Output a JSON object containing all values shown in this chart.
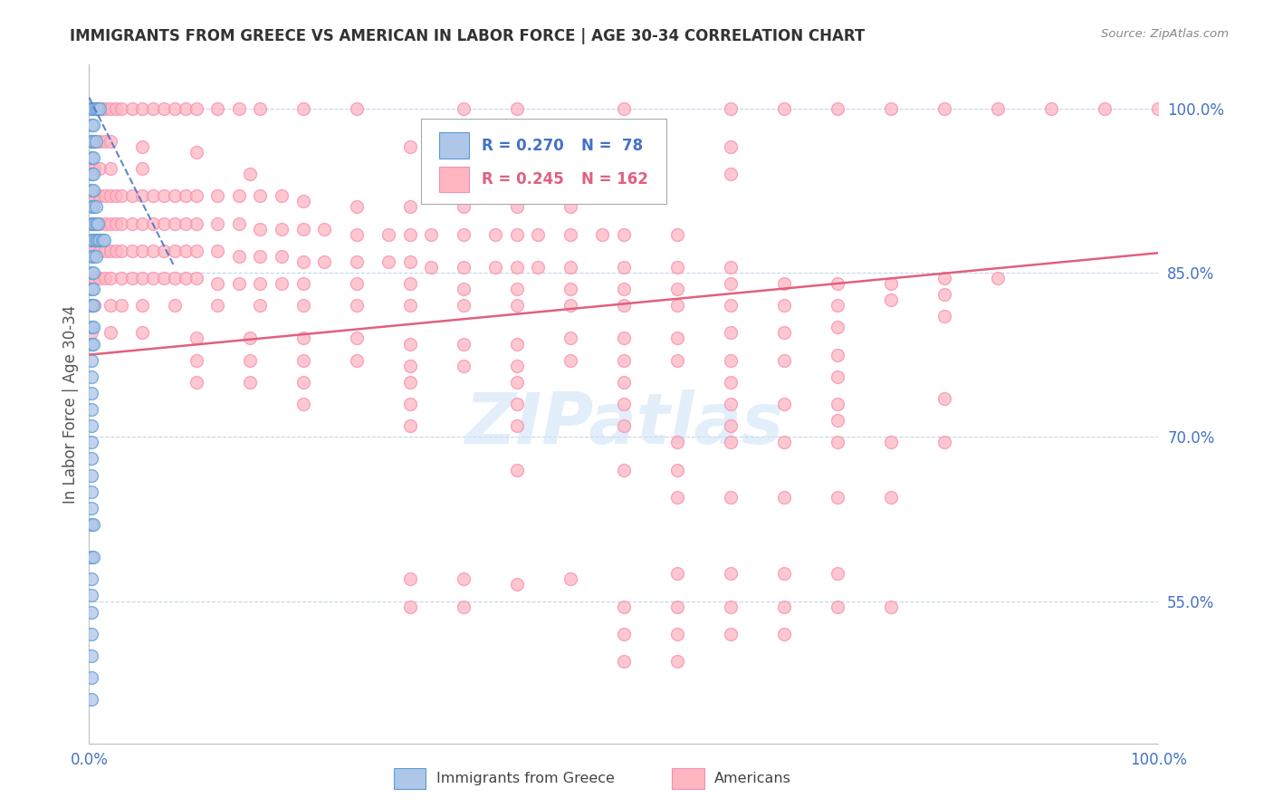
{
  "title": "IMMIGRANTS FROM GREECE VS AMERICAN IN LABOR FORCE | AGE 30-34 CORRELATION CHART",
  "source": "Source: ZipAtlas.com",
  "ylabel": "In Labor Force | Age 30-34",
  "xlim": [
    0.0,
    1.0
  ],
  "ylim": [
    0.42,
    1.04
  ],
  "yticks": [
    0.55,
    0.7,
    0.85,
    1.0
  ],
  "ytick_labels": [
    "55.0%",
    "70.0%",
    "85.0%",
    "100.0%"
  ],
  "xtick_labels": [
    "0.0%",
    "100.0%"
  ],
  "blue_R": 0.27,
  "blue_N": 78,
  "pink_R": 0.245,
  "pink_N": 162,
  "legend_label_blue": "Immigrants from Greece",
  "legend_label_pink": "Americans",
  "axis_color": "#4472C4",
  "watermark": "ZIPatlas",
  "blue_scatter": [
    [
      0.002,
      1.0
    ],
    [
      0.004,
      1.0
    ],
    [
      0.006,
      1.0
    ],
    [
      0.008,
      1.0
    ],
    [
      0.01,
      1.0
    ],
    [
      0.002,
      0.985
    ],
    [
      0.004,
      0.985
    ],
    [
      0.002,
      0.97
    ],
    [
      0.004,
      0.97
    ],
    [
      0.006,
      0.97
    ],
    [
      0.002,
      0.955
    ],
    [
      0.004,
      0.955
    ],
    [
      0.002,
      0.94
    ],
    [
      0.004,
      0.94
    ],
    [
      0.002,
      0.925
    ],
    [
      0.004,
      0.925
    ],
    [
      0.002,
      0.91
    ],
    [
      0.004,
      0.91
    ],
    [
      0.006,
      0.91
    ],
    [
      0.002,
      0.895
    ],
    [
      0.004,
      0.895
    ],
    [
      0.006,
      0.895
    ],
    [
      0.008,
      0.895
    ],
    [
      0.002,
      0.88
    ],
    [
      0.004,
      0.88
    ],
    [
      0.006,
      0.88
    ],
    [
      0.008,
      0.88
    ],
    [
      0.01,
      0.88
    ],
    [
      0.012,
      0.88
    ],
    [
      0.014,
      0.88
    ],
    [
      0.002,
      0.865
    ],
    [
      0.004,
      0.865
    ],
    [
      0.006,
      0.865
    ],
    [
      0.002,
      0.85
    ],
    [
      0.004,
      0.85
    ],
    [
      0.002,
      0.835
    ],
    [
      0.004,
      0.835
    ],
    [
      0.002,
      0.82
    ],
    [
      0.004,
      0.82
    ],
    [
      0.002,
      0.8
    ],
    [
      0.004,
      0.8
    ],
    [
      0.002,
      0.785
    ],
    [
      0.004,
      0.785
    ],
    [
      0.002,
      0.77
    ],
    [
      0.002,
      0.755
    ],
    [
      0.002,
      0.74
    ],
    [
      0.002,
      0.725
    ],
    [
      0.002,
      0.71
    ],
    [
      0.002,
      0.695
    ],
    [
      0.002,
      0.68
    ],
    [
      0.002,
      0.665
    ],
    [
      0.002,
      0.65
    ],
    [
      0.002,
      0.635
    ],
    [
      0.002,
      0.62
    ],
    [
      0.004,
      0.62
    ],
    [
      0.002,
      0.59
    ],
    [
      0.004,
      0.59
    ],
    [
      0.002,
      0.57
    ],
    [
      0.002,
      0.555
    ],
    [
      0.002,
      0.54
    ],
    [
      0.002,
      0.52
    ],
    [
      0.002,
      0.5
    ],
    [
      0.002,
      0.48
    ],
    [
      0.002,
      0.46
    ]
  ],
  "pink_scatter": [
    [
      0.002,
      1.0
    ],
    [
      0.005,
      1.0
    ],
    [
      0.008,
      1.0
    ],
    [
      0.012,
      1.0
    ],
    [
      0.015,
      1.0
    ],
    [
      0.02,
      1.0
    ],
    [
      0.025,
      1.0
    ],
    [
      0.03,
      1.0
    ],
    [
      0.04,
      1.0
    ],
    [
      0.05,
      1.0
    ],
    [
      0.06,
      1.0
    ],
    [
      0.07,
      1.0
    ],
    [
      0.08,
      1.0
    ],
    [
      0.09,
      1.0
    ],
    [
      0.1,
      1.0
    ],
    [
      0.12,
      1.0
    ],
    [
      0.14,
      1.0
    ],
    [
      0.16,
      1.0
    ],
    [
      0.2,
      1.0
    ],
    [
      0.25,
      1.0
    ],
    [
      0.35,
      1.0
    ],
    [
      0.4,
      1.0
    ],
    [
      0.5,
      1.0
    ],
    [
      0.6,
      1.0
    ],
    [
      0.65,
      1.0
    ],
    [
      0.7,
      1.0
    ],
    [
      0.75,
      1.0
    ],
    [
      0.8,
      1.0
    ],
    [
      0.85,
      1.0
    ],
    [
      0.9,
      1.0
    ],
    [
      0.95,
      1.0
    ],
    [
      1.0,
      1.0
    ],
    [
      0.002,
      0.97
    ],
    [
      0.005,
      0.97
    ],
    [
      0.01,
      0.97
    ],
    [
      0.015,
      0.97
    ],
    [
      0.02,
      0.97
    ],
    [
      0.05,
      0.965
    ],
    [
      0.1,
      0.96
    ],
    [
      0.3,
      0.965
    ],
    [
      0.4,
      0.975
    ],
    [
      0.6,
      0.965
    ],
    [
      0.002,
      0.945
    ],
    [
      0.005,
      0.945
    ],
    [
      0.01,
      0.945
    ],
    [
      0.02,
      0.945
    ],
    [
      0.05,
      0.945
    ],
    [
      0.15,
      0.94
    ],
    [
      0.35,
      0.94
    ],
    [
      0.45,
      0.945
    ],
    [
      0.6,
      0.94
    ],
    [
      0.002,
      0.92
    ],
    [
      0.005,
      0.92
    ],
    [
      0.01,
      0.92
    ],
    [
      0.015,
      0.92
    ],
    [
      0.02,
      0.92
    ],
    [
      0.025,
      0.92
    ],
    [
      0.03,
      0.92
    ],
    [
      0.04,
      0.92
    ],
    [
      0.05,
      0.92
    ],
    [
      0.06,
      0.92
    ],
    [
      0.07,
      0.92
    ],
    [
      0.08,
      0.92
    ],
    [
      0.09,
      0.92
    ],
    [
      0.1,
      0.92
    ],
    [
      0.12,
      0.92
    ],
    [
      0.14,
      0.92
    ],
    [
      0.16,
      0.92
    ],
    [
      0.18,
      0.92
    ],
    [
      0.2,
      0.915
    ],
    [
      0.25,
      0.91
    ],
    [
      0.3,
      0.91
    ],
    [
      0.35,
      0.91
    ],
    [
      0.4,
      0.91
    ],
    [
      0.45,
      0.91
    ],
    [
      0.002,
      0.895
    ],
    [
      0.005,
      0.895
    ],
    [
      0.008,
      0.895
    ],
    [
      0.01,
      0.895
    ],
    [
      0.015,
      0.895
    ],
    [
      0.02,
      0.895
    ],
    [
      0.025,
      0.895
    ],
    [
      0.03,
      0.895
    ],
    [
      0.04,
      0.895
    ],
    [
      0.05,
      0.895
    ],
    [
      0.06,
      0.895
    ],
    [
      0.07,
      0.895
    ],
    [
      0.08,
      0.895
    ],
    [
      0.09,
      0.895
    ],
    [
      0.1,
      0.895
    ],
    [
      0.12,
      0.895
    ],
    [
      0.14,
      0.895
    ],
    [
      0.16,
      0.89
    ],
    [
      0.18,
      0.89
    ],
    [
      0.2,
      0.89
    ],
    [
      0.22,
      0.89
    ],
    [
      0.25,
      0.885
    ],
    [
      0.28,
      0.885
    ],
    [
      0.3,
      0.885
    ],
    [
      0.32,
      0.885
    ],
    [
      0.35,
      0.885
    ],
    [
      0.38,
      0.885
    ],
    [
      0.4,
      0.885
    ],
    [
      0.42,
      0.885
    ],
    [
      0.45,
      0.885
    ],
    [
      0.48,
      0.885
    ],
    [
      0.5,
      0.885
    ],
    [
      0.55,
      0.885
    ],
    [
      0.002,
      0.87
    ],
    [
      0.005,
      0.87
    ],
    [
      0.01,
      0.87
    ],
    [
      0.015,
      0.87
    ],
    [
      0.02,
      0.87
    ],
    [
      0.025,
      0.87
    ],
    [
      0.03,
      0.87
    ],
    [
      0.04,
      0.87
    ],
    [
      0.05,
      0.87
    ],
    [
      0.06,
      0.87
    ],
    [
      0.07,
      0.87
    ],
    [
      0.08,
      0.87
    ],
    [
      0.09,
      0.87
    ],
    [
      0.1,
      0.87
    ],
    [
      0.12,
      0.87
    ],
    [
      0.14,
      0.865
    ],
    [
      0.16,
      0.865
    ],
    [
      0.18,
      0.865
    ],
    [
      0.2,
      0.86
    ],
    [
      0.22,
      0.86
    ],
    [
      0.25,
      0.86
    ],
    [
      0.28,
      0.86
    ],
    [
      0.3,
      0.86
    ],
    [
      0.32,
      0.855
    ],
    [
      0.35,
      0.855
    ],
    [
      0.38,
      0.855
    ],
    [
      0.4,
      0.855
    ],
    [
      0.42,
      0.855
    ],
    [
      0.45,
      0.855
    ],
    [
      0.5,
      0.855
    ],
    [
      0.55,
      0.855
    ],
    [
      0.6,
      0.855
    ],
    [
      0.002,
      0.845
    ],
    [
      0.005,
      0.845
    ],
    [
      0.01,
      0.845
    ],
    [
      0.015,
      0.845
    ],
    [
      0.02,
      0.845
    ],
    [
      0.03,
      0.845
    ],
    [
      0.04,
      0.845
    ],
    [
      0.05,
      0.845
    ],
    [
      0.06,
      0.845
    ],
    [
      0.07,
      0.845
    ],
    [
      0.08,
      0.845
    ],
    [
      0.09,
      0.845
    ],
    [
      0.1,
      0.845
    ],
    [
      0.12,
      0.84
    ],
    [
      0.14,
      0.84
    ],
    [
      0.16,
      0.84
    ],
    [
      0.18,
      0.84
    ],
    [
      0.2,
      0.84
    ],
    [
      0.25,
      0.84
    ],
    [
      0.3,
      0.84
    ],
    [
      0.35,
      0.835
    ],
    [
      0.4,
      0.835
    ],
    [
      0.45,
      0.835
    ],
    [
      0.5,
      0.835
    ],
    [
      0.55,
      0.835
    ],
    [
      0.6,
      0.84
    ],
    [
      0.65,
      0.84
    ],
    [
      0.7,
      0.84
    ],
    [
      0.75,
      0.84
    ],
    [
      0.8,
      0.845
    ],
    [
      0.85,
      0.845
    ],
    [
      0.002,
      0.82
    ],
    [
      0.005,
      0.82
    ],
    [
      0.02,
      0.82
    ],
    [
      0.03,
      0.82
    ],
    [
      0.05,
      0.82
    ],
    [
      0.08,
      0.82
    ],
    [
      0.12,
      0.82
    ],
    [
      0.16,
      0.82
    ],
    [
      0.2,
      0.82
    ],
    [
      0.25,
      0.82
    ],
    [
      0.3,
      0.82
    ],
    [
      0.35,
      0.82
    ],
    [
      0.4,
      0.82
    ],
    [
      0.45,
      0.82
    ],
    [
      0.5,
      0.82
    ],
    [
      0.55,
      0.82
    ],
    [
      0.6,
      0.82
    ],
    [
      0.65,
      0.82
    ],
    [
      0.7,
      0.82
    ],
    [
      0.75,
      0.825
    ],
    [
      0.8,
      0.83
    ],
    [
      0.002,
      0.795
    ],
    [
      0.02,
      0.795
    ],
    [
      0.05,
      0.795
    ],
    [
      0.1,
      0.79
    ],
    [
      0.15,
      0.79
    ],
    [
      0.2,
      0.79
    ],
    [
      0.25,
      0.79
    ],
    [
      0.3,
      0.785
    ],
    [
      0.35,
      0.785
    ],
    [
      0.4,
      0.785
    ],
    [
      0.45,
      0.79
    ],
    [
      0.5,
      0.79
    ],
    [
      0.55,
      0.79
    ],
    [
      0.6,
      0.795
    ],
    [
      0.65,
      0.795
    ],
    [
      0.7,
      0.8
    ],
    [
      0.8,
      0.81
    ],
    [
      0.1,
      0.77
    ],
    [
      0.15,
      0.77
    ],
    [
      0.2,
      0.77
    ],
    [
      0.25,
      0.77
    ],
    [
      0.3,
      0.765
    ],
    [
      0.35,
      0.765
    ],
    [
      0.4,
      0.765
    ],
    [
      0.45,
      0.77
    ],
    [
      0.5,
      0.77
    ],
    [
      0.55,
      0.77
    ],
    [
      0.6,
      0.77
    ],
    [
      0.65,
      0.77
    ],
    [
      0.7,
      0.775
    ],
    [
      0.1,
      0.75
    ],
    [
      0.15,
      0.75
    ],
    [
      0.2,
      0.75
    ],
    [
      0.3,
      0.75
    ],
    [
      0.4,
      0.75
    ],
    [
      0.5,
      0.75
    ],
    [
      0.6,
      0.75
    ],
    [
      0.7,
      0.755
    ],
    [
      0.2,
      0.73
    ],
    [
      0.3,
      0.73
    ],
    [
      0.4,
      0.73
    ],
    [
      0.5,
      0.73
    ],
    [
      0.6,
      0.73
    ],
    [
      0.65,
      0.73
    ],
    [
      0.7,
      0.73
    ],
    [
      0.8,
      0.735
    ],
    [
      0.3,
      0.71
    ],
    [
      0.4,
      0.71
    ],
    [
      0.5,
      0.71
    ],
    [
      0.6,
      0.71
    ],
    [
      0.7,
      0.715
    ],
    [
      0.55,
      0.695
    ],
    [
      0.6,
      0.695
    ],
    [
      0.65,
      0.695
    ],
    [
      0.7,
      0.695
    ],
    [
      0.75,
      0.695
    ],
    [
      0.8,
      0.695
    ],
    [
      0.4,
      0.67
    ],
    [
      0.5,
      0.67
    ],
    [
      0.55,
      0.67
    ],
    [
      0.55,
      0.645
    ],
    [
      0.6,
      0.645
    ],
    [
      0.65,
      0.645
    ],
    [
      0.7,
      0.645
    ],
    [
      0.75,
      0.645
    ],
    [
      0.3,
      0.57
    ],
    [
      0.35,
      0.57
    ],
    [
      0.4,
      0.565
    ],
    [
      0.45,
      0.57
    ],
    [
      0.55,
      0.575
    ],
    [
      0.6,
      0.575
    ],
    [
      0.65,
      0.575
    ],
    [
      0.7,
      0.575
    ],
    [
      0.3,
      0.545
    ],
    [
      0.35,
      0.545
    ],
    [
      0.5,
      0.545
    ],
    [
      0.55,
      0.545
    ],
    [
      0.6,
      0.545
    ],
    [
      0.65,
      0.545
    ],
    [
      0.7,
      0.545
    ],
    [
      0.75,
      0.545
    ],
    [
      0.5,
      0.52
    ],
    [
      0.55,
      0.52
    ],
    [
      0.6,
      0.52
    ],
    [
      0.65,
      0.52
    ],
    [
      0.5,
      0.495
    ],
    [
      0.55,
      0.495
    ]
  ],
  "blue_line_x": [
    0.0,
    0.08
  ],
  "blue_line_y": [
    1.01,
    0.855
  ],
  "pink_line_x": [
    0.0,
    1.0
  ],
  "pink_line_y": [
    0.775,
    0.868
  ]
}
